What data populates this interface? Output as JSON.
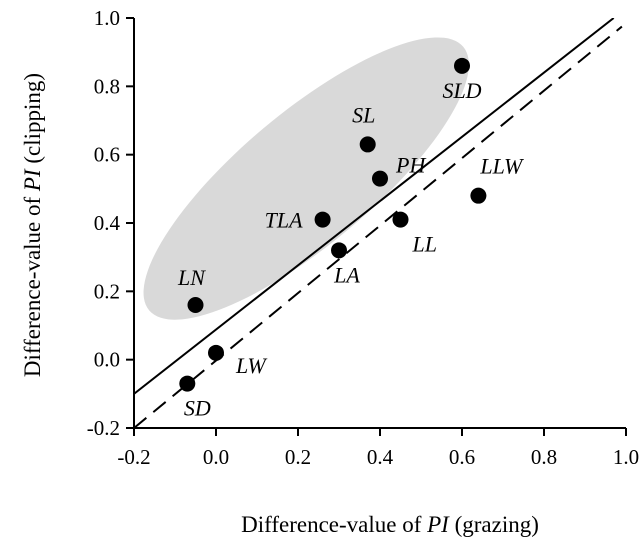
{
  "chart_data": {
    "type": "scatter",
    "title": "",
    "xlabel": {
      "prefix": "Difference-value of ",
      "italic": "PI",
      "suffix": " (grazing)"
    },
    "ylabel": {
      "prefix": "Difference-value of ",
      "italic": "PI",
      "suffix": " (clipping)"
    },
    "xlim": [
      -0.2,
      1.0
    ],
    "ylim": [
      -0.2,
      1.0
    ],
    "xticks": [
      "-0.2",
      "0.0",
      "0.2",
      "0.4",
      "0.6",
      "0.8",
      "1.0"
    ],
    "yticks": [
      "-0.2",
      "0.0",
      "0.2",
      "0.4",
      "0.6",
      "0.8",
      "1.0"
    ],
    "grid": false,
    "point_color": "#000000",
    "ellipse_color": "#d9d9d9",
    "points": [
      {
        "label": "SLD",
        "x": 0.6,
        "y": 0.86,
        "label_pos": "below"
      },
      {
        "label": "SL",
        "x": 0.37,
        "y": 0.63,
        "label_pos": "above-left"
      },
      {
        "label": "PH",
        "x": 0.4,
        "y": 0.53,
        "label_pos": "above-right"
      },
      {
        "label": "LLW",
        "x": 0.64,
        "y": 0.48,
        "label_pos": "above-right"
      },
      {
        "label": "TLA",
        "x": 0.26,
        "y": 0.41,
        "label_pos": "left"
      },
      {
        "label": "LL",
        "x": 0.45,
        "y": 0.41,
        "label_pos": "below-right"
      },
      {
        "label": "LA",
        "x": 0.3,
        "y": 0.32,
        "label_pos": "below"
      },
      {
        "label": "LN",
        "x": -0.05,
        "y": 0.16,
        "label_pos": "above-left"
      },
      {
        "label": "LW",
        "x": 0.0,
        "y": 0.02,
        "label_pos": "below-right"
      },
      {
        "label": "SD",
        "x": -0.07,
        "y": -0.07,
        "label_pos": "below"
      }
    ],
    "lines": [
      {
        "name": "1:1 line",
        "style": "solid",
        "x": [
          -0.2,
          0.97
        ],
        "y": [
          -0.1,
          1.0
        ]
      },
      {
        "name": "regression",
        "style": "dashed",
        "x": [
          -0.2,
          0.99
        ],
        "y": [
          -0.2,
          0.975
        ]
      }
    ],
    "ellipse": {
      "center": [
        0.22,
        0.53
      ],
      "points_enclosed": [
        "SLD",
        "SL",
        "PH",
        "TLA",
        "LA",
        "LN"
      ]
    }
  }
}
